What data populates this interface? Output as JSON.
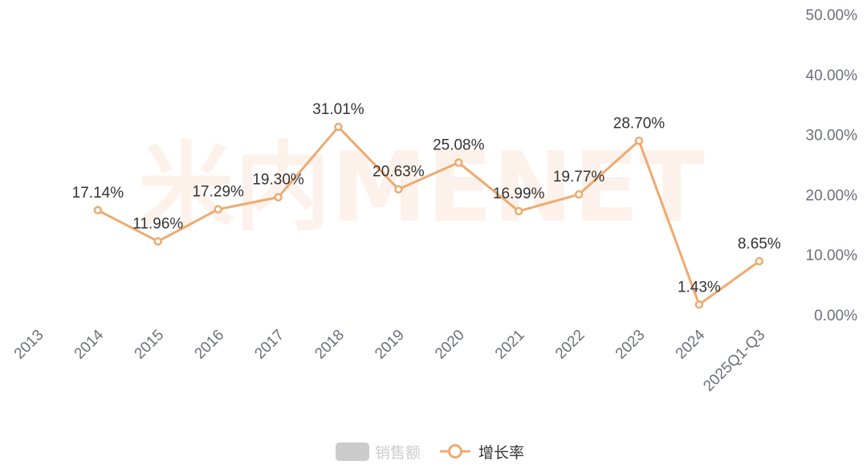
{
  "watermark": "米内MENET",
  "colors": {
    "line": "#eeaa70",
    "point_fill": "#ffffff",
    "legend_inactive": "#cccccc",
    "legend_text": "#333333",
    "legend_text_inactive": "#cccccc",
    "tick_text": "#6e7079"
  },
  "legend": {
    "items": [
      {
        "label": "销售额",
        "shape": "rounded-rect",
        "active": false
      },
      {
        "label": "增长率",
        "shape": "line-circle",
        "active": true
      }
    ]
  },
  "chart_data": {
    "type": "line",
    "categories": [
      "2013",
      "2014",
      "2015",
      "2016",
      "2017",
      "2018",
      "2019",
      "2020",
      "2021",
      "2022",
      "2023",
      "2024",
      "2025Q1-Q3"
    ],
    "series": [
      {
        "name": "增长率",
        "values": [
          null,
          17.14,
          11.96,
          17.29,
          19.3,
          31.01,
          20.63,
          25.08,
          16.99,
          19.77,
          28.7,
          1.43,
          8.65
        ],
        "labels": [
          "",
          "17.14%",
          "11.96%",
          "17.29%",
          "19.30%",
          "31.01%",
          "20.63%",
          "25.08%",
          "16.99%",
          "19.77%",
          "28.70%",
          "1.43%",
          "8.65%"
        ],
        "marker": "hollow-circle"
      }
    ],
    "y_axis": {
      "position": "right",
      "ylim": [
        0,
        50
      ],
      "ticks": [
        0,
        10,
        20,
        30,
        40,
        50
      ],
      "tick_labels": [
        "0.00%",
        "10.00%",
        "20.00%",
        "30.00%",
        "40.00%",
        "50.00%"
      ]
    },
    "x_axis": {
      "label_rotation": -45
    },
    "grid": false,
    "legend_position": "bottom-center"
  }
}
